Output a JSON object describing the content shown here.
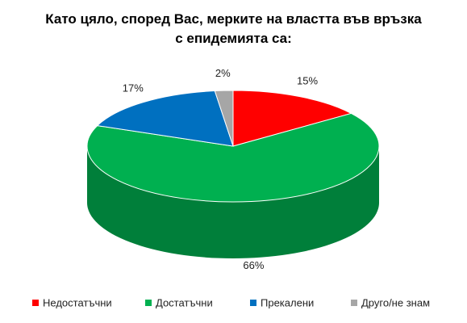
{
  "chart_data": {
    "type": "pie3d",
    "title": "Като цяло, според Вас, мерките на властта във връзка с епидемията са:",
    "categories": [
      "Недостатъчни",
      "Достатъчни",
      "Прекалени",
      "Друго/не знам"
    ],
    "values": [
      15,
      66,
      17,
      2
    ],
    "value_labels": [
      "15%",
      "66%",
      "17%",
      "2%"
    ],
    "colors": [
      "#ff0000",
      "#00b050",
      "#0070c0",
      "#a6a6a6"
    ],
    "legend": "bottom"
  }
}
